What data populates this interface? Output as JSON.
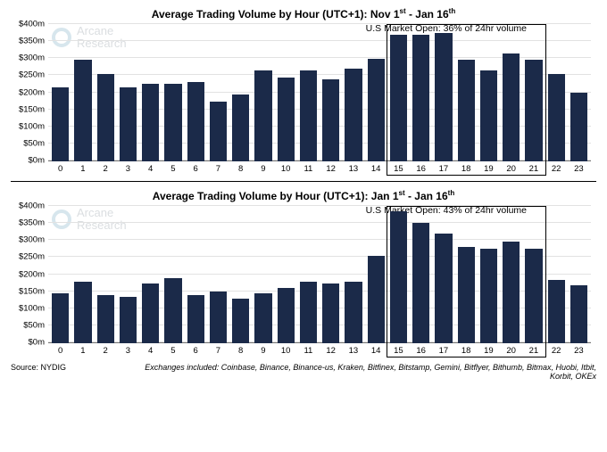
{
  "chart1": {
    "type": "bar",
    "title_html": "Average Trading Volume by Hour (UTC+1): Nov 1<sup>st</sup> - Jan 16<sup>th</sup>",
    "annotation": "U.S Market Open: 36% of 24hr volume",
    "watermark": "Arcane\nResearch",
    "y_max": 400,
    "y_ticks": [
      0,
      50,
      100,
      150,
      200,
      250,
      300,
      350,
      400
    ],
    "y_prefix": "$",
    "y_suffix": "m",
    "categories": [
      "0",
      "1",
      "2",
      "3",
      "4",
      "5",
      "6",
      "7",
      "8",
      "9",
      "10",
      "11",
      "12",
      "13",
      "14",
      "15",
      "16",
      "17",
      "18",
      "19",
      "20",
      "21",
      "22",
      "23"
    ],
    "values": [
      215,
      295,
      255,
      215,
      225,
      225,
      230,
      175,
      195,
      265,
      245,
      265,
      240,
      270,
      300,
      370,
      370,
      375,
      295,
      265,
      315,
      295,
      255,
      200
    ],
    "bar_color": "#1b2a49",
    "highlight_range": [
      15,
      21
    ],
    "background_color": "#ffffff",
    "grid_color": "#e2e2e2",
    "axis_color": "#777777",
    "label_fontsize": 9.5,
    "title_fontsize": 12
  },
  "chart2": {
    "type": "bar",
    "title_html": "Average Trading Volume by Hour (UTC+1): Jan 1<sup>st</sup> - Jan 16<sup>th</sup>",
    "annotation": "U.S Market Open: 43% of 24hr volume",
    "watermark": "Arcane\nResearch",
    "y_max": 400,
    "y_ticks": [
      0,
      50,
      100,
      150,
      200,
      250,
      300,
      350,
      400
    ],
    "y_prefix": "$",
    "y_suffix": "m",
    "categories": [
      "0",
      "1",
      "2",
      "3",
      "4",
      "5",
      "6",
      "7",
      "8",
      "9",
      "10",
      "11",
      "12",
      "13",
      "14",
      "15",
      "16",
      "17",
      "18",
      "19",
      "20",
      "21",
      "22",
      "23"
    ],
    "values": [
      145,
      180,
      140,
      135,
      175,
      190,
      140,
      150,
      130,
      145,
      160,
      180,
      175,
      180,
      255,
      385,
      350,
      320,
      280,
      275,
      295,
      275,
      185,
      170
    ],
    "bar_color": "#1b2a49",
    "highlight_range": [
      15,
      21
    ],
    "background_color": "#ffffff",
    "grid_color": "#e2e2e2",
    "axis_color": "#777777",
    "label_fontsize": 9.5,
    "title_fontsize": 12
  },
  "footer": {
    "source": "Source: NYDIG",
    "exchanges": "Exchanges included: Coinbase, Binance, Binance-us, Kraken, Bitfinex, Bitstamp, Gemini, Bitflyer, Bithumb, Bitmax, Huobi, Itbit, Korbit, OKEx"
  }
}
